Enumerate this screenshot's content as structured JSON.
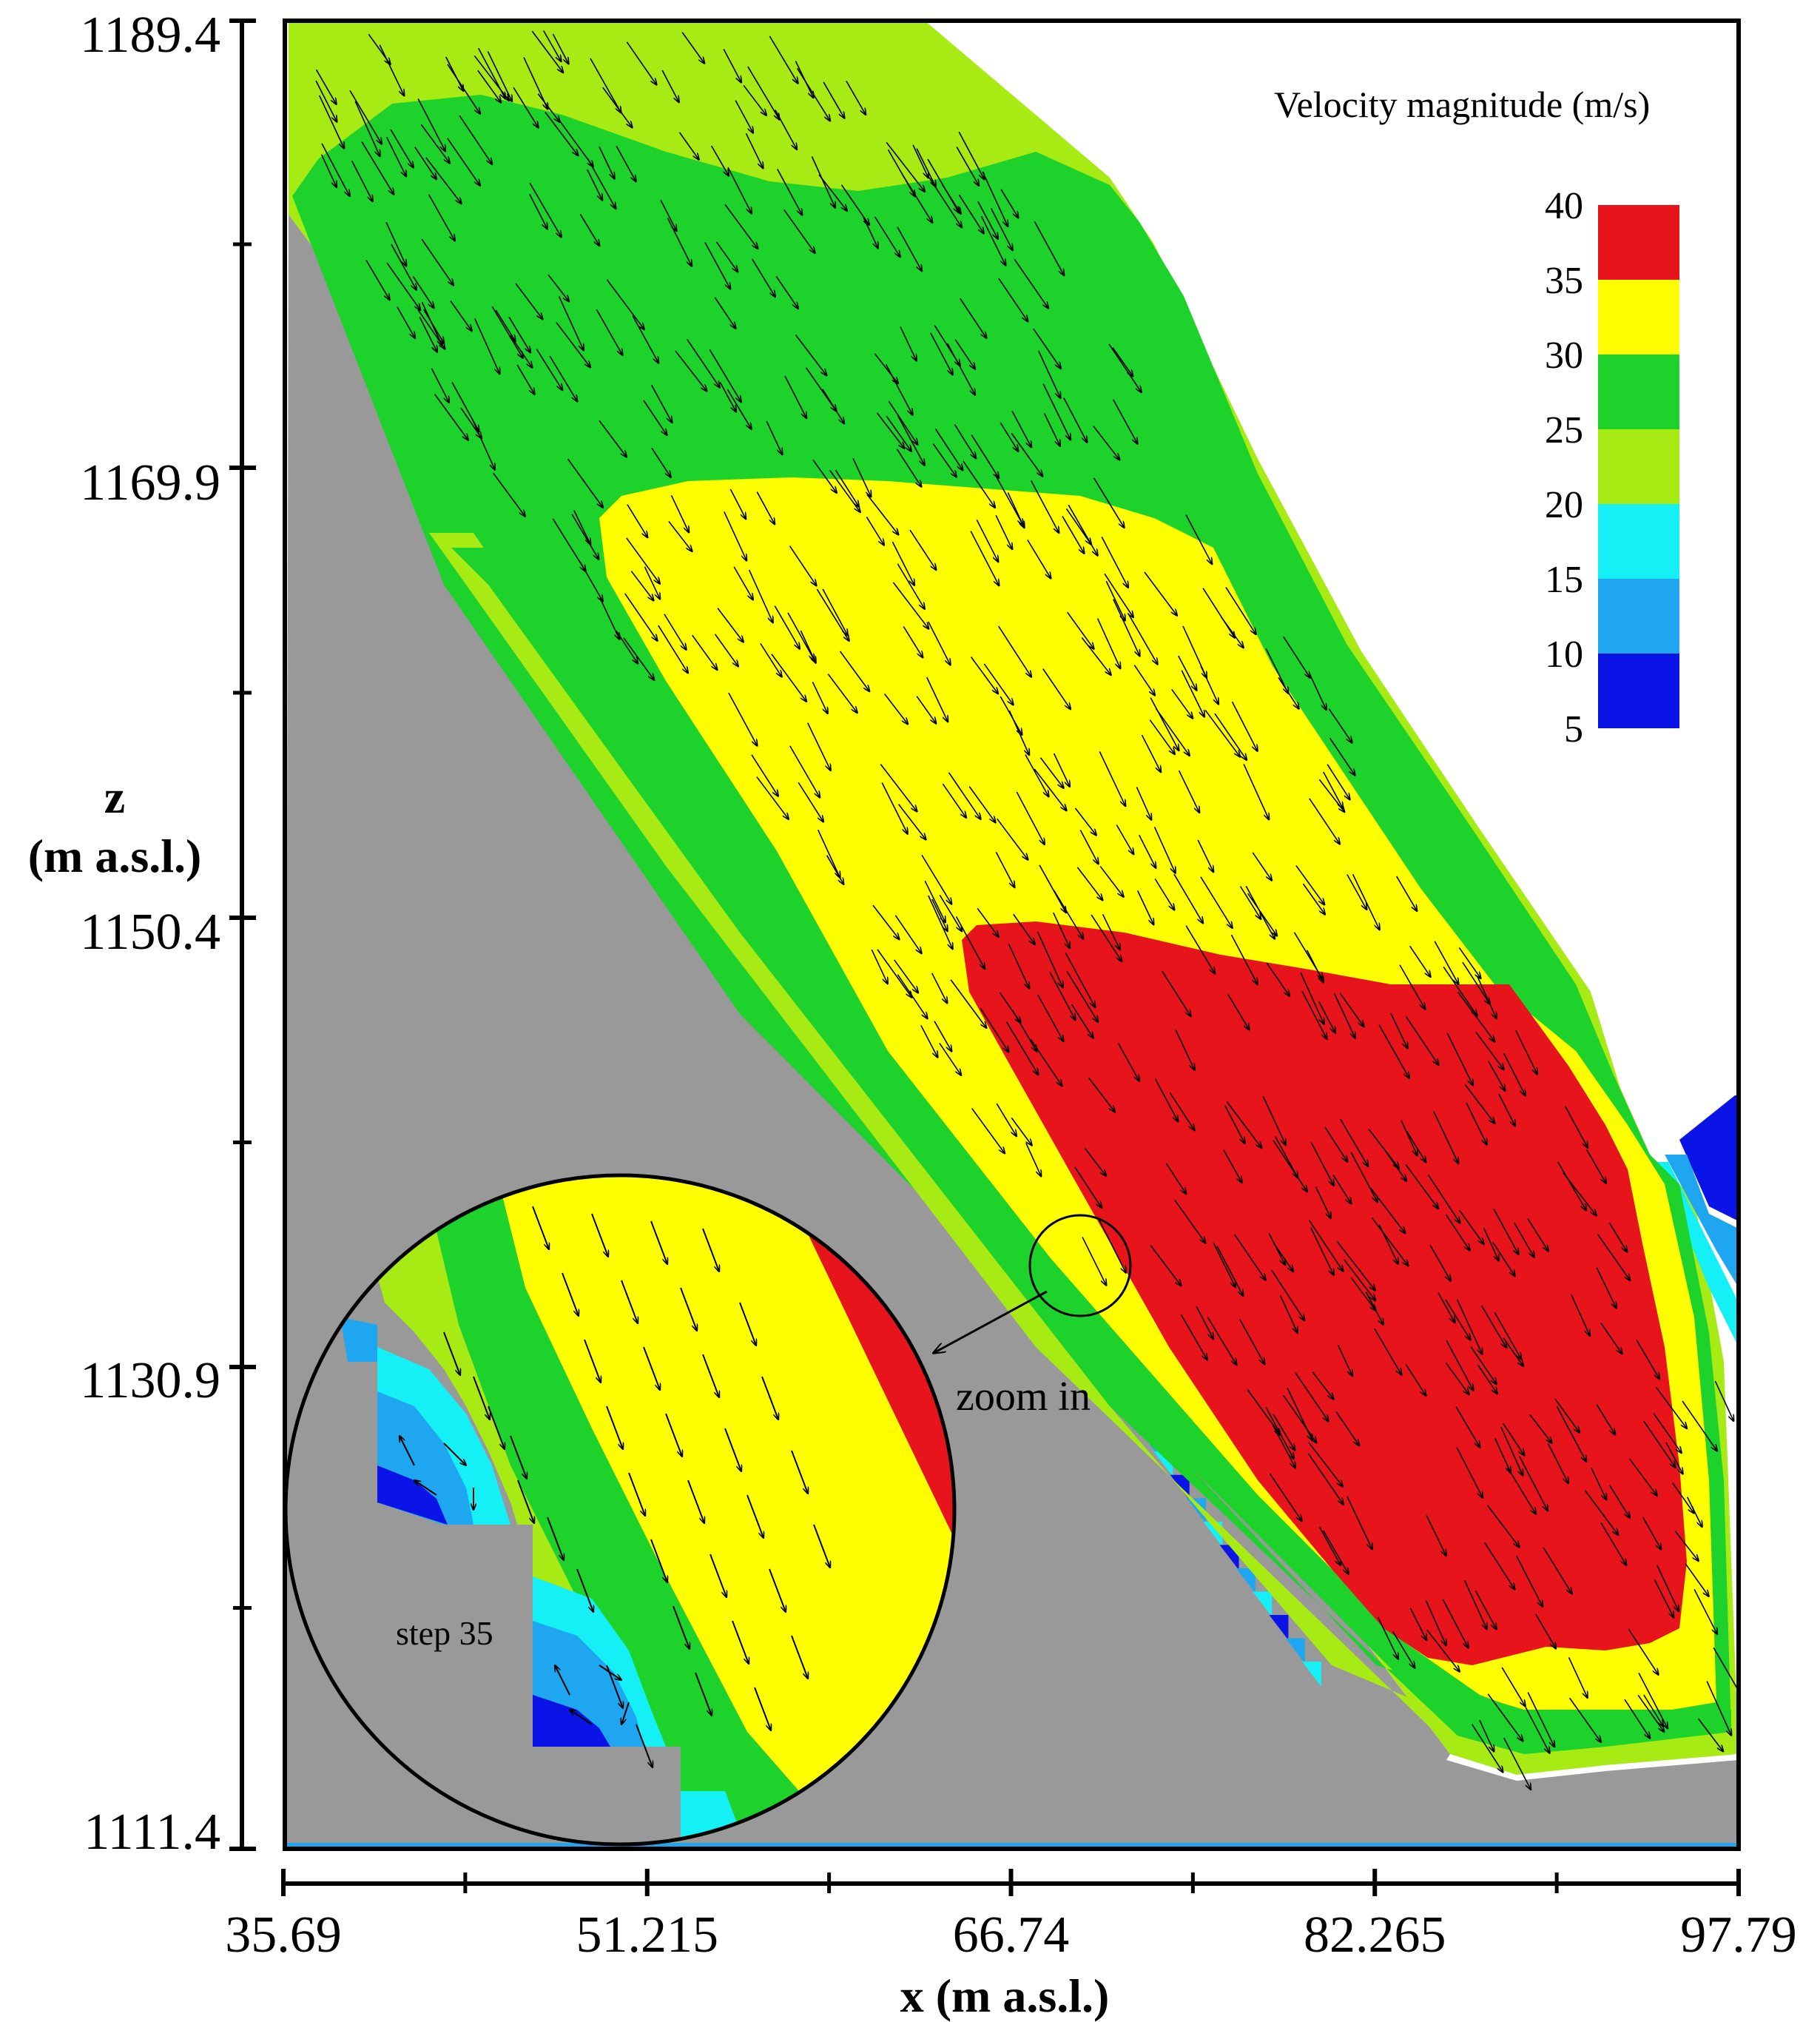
{
  "chart_data": {
    "type": "heatmap",
    "subtype": "contour with velocity vectors",
    "xlabel": "x (m a.s.l.)",
    "ylabel_line1": "z",
    "ylabel_line2": "(m a.s.l.)",
    "x_ticks": [
      "35.69",
      "51.215",
      "66.74",
      "82.265",
      "97.79"
    ],
    "y_ticks": [
      "1189.4",
      "1169.9",
      "1150.4",
      "1130.9",
      "1111.4"
    ],
    "xlim": [
      35.69,
      97.79
    ],
    "ylim": [
      1111.4,
      1189.4
    ],
    "legend": {
      "title": "Velocity magnitude (m/s)",
      "position": "top-right",
      "labels": [
        "40",
        "35",
        "30",
        "25",
        "20",
        "15",
        "10",
        "5"
      ],
      "bands": [
        {
          "range": [
            35,
            40
          ],
          "color": "#e8141b"
        },
        {
          "range": [
            30,
            35
          ],
          "color": "#ffff00"
        },
        {
          "range": [
            25,
            30
          ],
          "color": "#1ed22c"
        },
        {
          "range": [
            20,
            25
          ],
          "color": "#a8ea14"
        },
        {
          "range": [
            15,
            20
          ],
          "color": "#14f0f5"
        },
        {
          "range": [
            10,
            15
          ],
          "color": "#1ea6f0"
        },
        {
          "range": [
            5,
            10
          ],
          "color": "#0a14e6"
        }
      ]
    },
    "annotations": {
      "zoom_label": "zoom in",
      "step_label": "step 35"
    },
    "colors": {
      "bed": "#999999",
      "red": "#e8141b",
      "yellow": "#ffff00",
      "green": "#1ed22c",
      "light_green": "#a8ea14",
      "cyan": "#14f0f5",
      "light_blue": "#1ea6f0",
      "blue": "#0a14e6"
    },
    "grid": false
  }
}
